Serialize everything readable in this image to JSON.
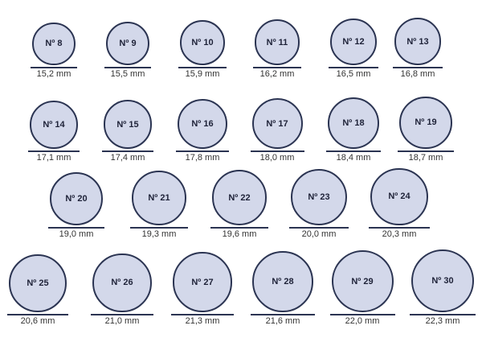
{
  "colors": {
    "ring_fill": "#d3d8ea",
    "ring_stroke": "#2b3452",
    "text": "#1e2238"
  },
  "rows": [
    [
      {
        "size": "Nº 8",
        "mm": "15,2 mm"
      },
      {
        "size": "Nº 9",
        "mm": "15,5 mm"
      },
      {
        "size": "Nº 10",
        "mm": "15,9 mm"
      },
      {
        "size": "Nº 11",
        "mm": "16,2 mm"
      },
      {
        "size": "Nº 12",
        "mm": "16,5 mm"
      },
      {
        "size": "Nº 13",
        "mm": "16,8 mm"
      }
    ],
    [
      {
        "size": "Nº 14",
        "mm": "17,1 mm"
      },
      {
        "size": "Nº 15",
        "mm": "17,4 mm"
      },
      {
        "size": "Nº 16",
        "mm": "17,8 mm"
      },
      {
        "size": "Nº 17",
        "mm": "18,0 mm"
      },
      {
        "size": "Nº 18",
        "mm": "18,4 mm"
      },
      {
        "size": "Nº 19",
        "mm": "18,7 mm"
      }
    ],
    [
      {
        "size": "Nº 20",
        "mm": "19,0 mm"
      },
      {
        "size": "Nº 21",
        "mm": "19,3 mm"
      },
      {
        "size": "Nº 22",
        "mm": "19,6 mm"
      },
      {
        "size": "Nº 23",
        "mm": "20,0 mm"
      },
      {
        "size": "Nº 24",
        "mm": "20,3 mm"
      }
    ],
    [
      {
        "size": "Nº 25",
        "mm": "20,6 mm"
      },
      {
        "size": "Nº 26",
        "mm": "21,0 mm"
      },
      {
        "size": "Nº 27",
        "mm": "21,3 mm"
      },
      {
        "size": "Nº 28",
        "mm": "21,6 mm"
      },
      {
        "size": "Nº 29",
        "mm": "22,0 mm"
      },
      {
        "size": "Nº 30",
        "mm": "22,3 mm"
      }
    ]
  ]
}
